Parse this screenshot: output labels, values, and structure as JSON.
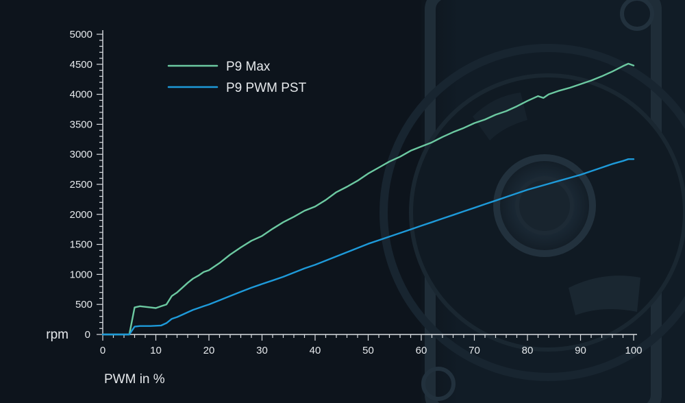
{
  "chart_data": {
    "type": "line",
    "xlabel": "PWM in %",
    "ylabel": "rpm",
    "xlim": [
      0,
      100
    ],
    "ylim": [
      0,
      5000
    ],
    "x_ticks": [
      0,
      10,
      20,
      30,
      40,
      50,
      60,
      70,
      80,
      90,
      100
    ],
    "y_ticks": [
      0,
      500,
      1000,
      1500,
      2000,
      2500,
      3000,
      3500,
      4000,
      4500,
      5000
    ],
    "grid": false,
    "legend_position": "top-left",
    "series": [
      {
        "name": "P9 Max",
        "color": "#6cc9a1",
        "x": [
          0,
          5,
          6,
          7,
          8,
          9,
          10,
          11,
          12,
          13,
          14,
          15,
          16,
          17,
          18,
          19,
          20,
          22,
          24,
          26,
          28,
          30,
          32,
          34,
          36,
          38,
          40,
          42,
          44,
          46,
          48,
          50,
          52,
          54,
          56,
          58,
          60,
          62,
          64,
          66,
          68,
          70,
          72,
          74,
          76,
          78,
          80,
          82,
          83,
          84,
          86,
          88,
          90,
          92,
          94,
          96,
          98,
          99,
          100
        ],
        "values": [
          0,
          0,
          450,
          470,
          460,
          450,
          440,
          470,
          500,
          640,
          700,
          780,
          860,
          930,
          980,
          1040,
          1070,
          1190,
          1330,
          1450,
          1560,
          1640,
          1760,
          1870,
          1960,
          2060,
          2130,
          2240,
          2370,
          2460,
          2560,
          2680,
          2780,
          2880,
          2960,
          3060,
          3130,
          3200,
          3290,
          3370,
          3440,
          3520,
          3580,
          3660,
          3720,
          3800,
          3890,
          3970,
          3940,
          4000,
          4060,
          4110,
          4170,
          4230,
          4300,
          4380,
          4470,
          4510,
          4480
        ]
      },
      {
        "name": "P9 PWM PST",
        "color": "#1e9ad9",
        "x": [
          0,
          5,
          6,
          7,
          8,
          9,
          10,
          11,
          12,
          13,
          14,
          15,
          16,
          17,
          18,
          19,
          20,
          22,
          24,
          26,
          28,
          30,
          32,
          34,
          36,
          38,
          40,
          42,
          44,
          46,
          48,
          50,
          52,
          54,
          56,
          58,
          60,
          62,
          64,
          66,
          68,
          70,
          72,
          74,
          76,
          78,
          80,
          82,
          84,
          86,
          88,
          90,
          92,
          94,
          96,
          98,
          99,
          100
        ],
        "values": [
          0,
          0,
          130,
          140,
          140,
          140,
          145,
          150,
          190,
          260,
          290,
          330,
          370,
          410,
          440,
          470,
          500,
          570,
          640,
          710,
          780,
          840,
          900,
          960,
          1030,
          1100,
          1160,
          1230,
          1300,
          1370,
          1440,
          1510,
          1570,
          1630,
          1690,
          1750,
          1810,
          1870,
          1930,
          1990,
          2050,
          2110,
          2170,
          2230,
          2290,
          2350,
          2410,
          2460,
          2510,
          2560,
          2610,
          2660,
          2720,
          2780,
          2840,
          2890,
          2920,
          2920
        ]
      }
    ]
  }
}
